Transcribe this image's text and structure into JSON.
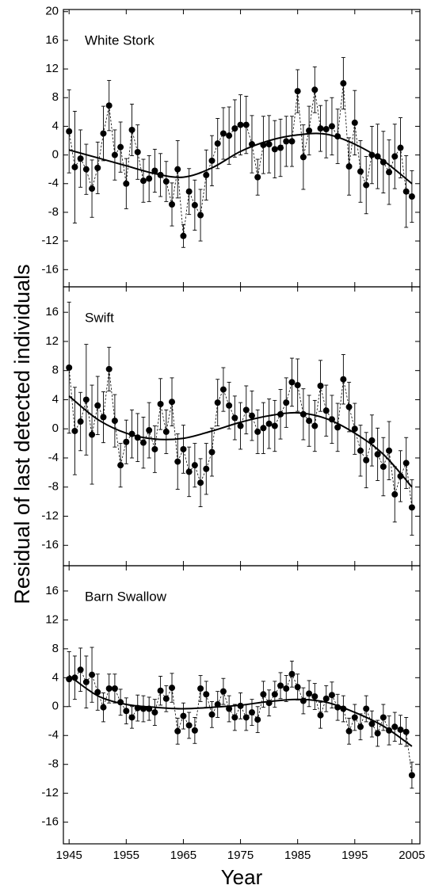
{
  "chart_data": [
    {
      "type": "line",
      "title": "White Stork",
      "x": [
        1945,
        1946,
        1947,
        1948,
        1949,
        1950,
        1951,
        1952,
        1953,
        1954,
        1955,
        1956,
        1957,
        1958,
        1959,
        1960,
        1961,
        1962,
        1963,
        1964,
        1965,
        1966,
        1967,
        1968,
        1969,
        1970,
        1971,
        1972,
        1973,
        1974,
        1975,
        1976,
        1977,
        1978,
        1979,
        1980,
        1981,
        1982,
        1983,
        1984,
        1985,
        1986,
        1987,
        1988,
        1989,
        1990,
        1991,
        1992,
        1993,
        1994,
        1995,
        1996,
        1997,
        1998,
        1999,
        2000,
        2001,
        2002,
        2003,
        2004,
        2005
      ],
      "values": [
        3.3,
        -1.7,
        -0.5,
        -2,
        -4.7,
        -1.8,
        3,
        6.9,
        0,
        1.1,
        -4,
        3.5,
        0.4,
        -3.6,
        -3.3,
        -2.2,
        -2.8,
        -3.7,
        -6.9,
        -2,
        -11.3,
        -5.1,
        -7,
        -8.4,
        -2.8,
        -0.8,
        1.6,
        3,
        2.7,
        3.7,
        4.2,
        4.2,
        1.5,
        -3.1,
        1.4,
        1.5,
        0.8,
        1,
        1.9,
        1.9,
        8.9,
        -0.3,
        3.4,
        9.1,
        3.7,
        3.6,
        4,
        2.6,
        10,
        -1.6,
        4.5,
        -2.3,
        -4.2,
        0,
        -0.2,
        -1,
        -2.4,
        -0.2,
        1,
        -5.1,
        -5.8
      ],
      "errors": [
        5.8,
        7.8,
        4,
        3.5,
        4,
        3.6,
        3.8,
        3.5,
        3.5,
        3.5,
        3.5,
        3.6,
        3.8,
        3,
        3.2,
        3,
        3,
        2.8,
        3,
        4,
        1.6,
        3.2,
        3.5,
        3.6,
        3.5,
        3.5,
        3.5,
        3.6,
        4,
        4,
        4.2,
        4,
        4,
        2.5,
        4,
        4,
        4,
        4,
        3.5,
        3.5,
        3,
        4.5,
        3.4,
        3.2,
        3.2,
        4,
        4,
        3.8,
        3.6,
        4,
        4.5,
        4.3,
        4,
        4,
        4.5,
        4.3,
        4.5,
        4.5,
        4.2,
        5,
        3.6
      ],
      "trend": {
        "x": [
          1945,
          1950,
          1955,
          1960,
          1965,
          1970,
          1975,
          1980,
          1985,
          1990,
          1995,
          2000,
          2005
        ],
        "values": [
          0.7,
          -0.4,
          -1.5,
          -2.6,
          -3.1,
          -1.8,
          0.5,
          2,
          2.8,
          2.9,
          1.5,
          -0.8,
          -4
        ]
      },
      "xlim": [
        1944,
        2006.4
      ],
      "xticks": [
        1945,
        1955,
        1965,
        1975,
        1985,
        1995,
        2005
      ],
      "ylim": [
        -18.4,
        20.3
      ],
      "yticks": [
        20,
        16,
        12,
        8,
        4,
        0,
        -4,
        -8,
        -12,
        -16
      ]
    },
    {
      "type": "line",
      "title": "Swift",
      "ylabel": "Residual of last detected individuals",
      "x": [
        1945,
        1946,
        1947,
        1948,
        1949,
        1950,
        1951,
        1952,
        1953,
        1954,
        1955,
        1956,
        1957,
        1958,
        1959,
        1960,
        1961,
        1962,
        1963,
        1964,
        1965,
        1966,
        1967,
        1968,
        1969,
        1970,
        1971,
        1972,
        1973,
        1974,
        1975,
        1976,
        1977,
        1978,
        1979,
        1980,
        1981,
        1982,
        1983,
        1984,
        1985,
        1986,
        1987,
        1988,
        1989,
        1990,
        1991,
        1992,
        1993,
        1994,
        1995,
        1996,
        1997,
        1998,
        1999,
        2000,
        2001,
        2002,
        2003,
        2004,
        2005
      ],
      "values": [
        8.4,
        -0.3,
        1,
        4,
        -0.8,
        3.2,
        1.6,
        8.2,
        1.1,
        -5,
        -1.8,
        -0.7,
        -1.2,
        -1.9,
        -0.2,
        -2.8,
        3.4,
        -0.4,
        3.7,
        -4.5,
        -2.8,
        -5.9,
        -5,
        -7.4,
        -5.5,
        -3.2,
        3.6,
        5.4,
        3.2,
        1.5,
        0.4,
        2.6,
        1.8,
        -0.4,
        0.1,
        0.7,
        0.4,
        2,
        3.6,
        6.4,
        6,
        2,
        1.1,
        0.4,
        5.9,
        2.5,
        1.3,
        0.2,
        6.8,
        3,
        0,
        -3,
        -4.3,
        -1.6,
        -3.5,
        -5.2,
        -3,
        -9,
        -6.5,
        -4.7,
        -10.8
      ],
      "errors": [
        9,
        6,
        4,
        7.6,
        6.8,
        4,
        3.5,
        3,
        3.6,
        3,
        3,
        3.3,
        3.3,
        3.5,
        3.8,
        3.2,
        3.5,
        3,
        3.3,
        3.8,
        3.3,
        3.4,
        3,
        3.3,
        3.5,
        3.3,
        3.2,
        3,
        3.2,
        3,
        3.2,
        3.3,
        3.4,
        3,
        3.5,
        3.4,
        3.5,
        3.4,
        3.4,
        3.3,
        3.6,
        3.5,
        3.5,
        3.5,
        3.5,
        3.5,
        3.3,
        3.3,
        3.4,
        3.4,
        3.5,
        3.5,
        3.8,
        3.5,
        3.6,
        4,
        4,
        3.8,
        3.5,
        3.5,
        3.8
      ],
      "trend": {
        "x": [
          1945,
          1950,
          1955,
          1960,
          1965,
          1970,
          1975,
          1980,
          1985,
          1990,
          1995,
          2000,
          2005
        ],
        "values": [
          4.5,
          1.3,
          -0.6,
          -1.4,
          -1.3,
          -0.3,
          0.9,
          1.8,
          2.2,
          1.4,
          -0.6,
          -3.5,
          -8
        ]
      },
      "xlim": [
        1944,
        2006.4
      ],
      "xticks": [
        1945,
        1955,
        1965,
        1975,
        1985,
        1995,
        2005
      ],
      "ylim": [
        -18.8,
        19.5
      ],
      "yticks": [
        16,
        12,
        8,
        4,
        0,
        -4,
        -8,
        -12,
        -16
      ]
    },
    {
      "type": "line",
      "title": "Barn Swallow",
      "xlabel": "Year",
      "x": [
        1945,
        1946,
        1947,
        1948,
        1949,
        1950,
        1951,
        1952,
        1953,
        1954,
        1955,
        1956,
        1957,
        1958,
        1959,
        1960,
        1961,
        1962,
        1963,
        1964,
        1965,
        1966,
        1967,
        1968,
        1969,
        1970,
        1971,
        1972,
        1973,
        1974,
        1975,
        1976,
        1977,
        1978,
        1979,
        1980,
        1981,
        1982,
        1983,
        1984,
        1985,
        1986,
        1987,
        1988,
        1989,
        1990,
        1991,
        1992,
        1993,
        1994,
        1995,
        1996,
        1997,
        1998,
        1999,
        2000,
        2001,
        2002,
        2003,
        2004,
        2005
      ],
      "values": [
        3.8,
        4,
        5.1,
        3.4,
        4.4,
        2,
        -0.1,
        2.5,
        2.5,
        0.6,
        -0.6,
        -1.5,
        -0.2,
        -0.3,
        -0.3,
        -0.8,
        2.2,
        1.1,
        2.6,
        -3.4,
        -1.3,
        -2.6,
        -3.3,
        2.5,
        1.7,
        -1.1,
        0.3,
        2.1,
        -0.3,
        -1.5,
        0.1,
        -1.5,
        -0.8,
        -1.8,
        1.7,
        0.5,
        1.7,
        2.9,
        2.5,
        4.5,
        2.7,
        0.8,
        1.8,
        1.4,
        -1.2,
        1.1,
        1.6,
        -0.1,
        -0.3,
        -3.4,
        -1.5,
        -2.8,
        -0.3,
        -2.4,
        -3.7,
        -1.5,
        -3.3,
        -2.8,
        -3.2,
        -3.5,
        -9.5
      ],
      "errors": [
        3.8,
        3,
        3,
        3.6,
        3.8,
        2.5,
        2,
        2,
        2,
        1.8,
        1.8,
        1.5,
        1.8,
        1.8,
        1.6,
        1.8,
        2,
        1.8,
        2,
        1.8,
        1.8,
        1.8,
        1.8,
        1.8,
        1.8,
        1.8,
        1.8,
        1.8,
        1.8,
        1.8,
        1.8,
        1.8,
        1.8,
        1.8,
        1.8,
        1.8,
        1.8,
        1.8,
        1.8,
        1.8,
        1.8,
        1.8,
        1.8,
        1.8,
        1.8,
        1.8,
        1.8,
        1.8,
        1.8,
        1.8,
        1.8,
        1.8,
        1.8,
        1.8,
        1.8,
        1.8,
        2,
        2,
        2,
        2,
        1.8
      ],
      "trend": {
        "x": [
          1945,
          1950,
          1955,
          1960,
          1965,
          1970,
          1975,
          1980,
          1985,
          1990,
          1995,
          2000,
          2005
        ],
        "values": [
          4.3,
          1.5,
          0.3,
          -0.1,
          -0.3,
          -0.1,
          0.2,
          0.7,
          1,
          0.6,
          -0.8,
          -2.7,
          -5.5
        ]
      },
      "xlim": [
        1944,
        2006.4
      ],
      "xticks": [
        1945,
        1955,
        1965,
        1975,
        1985,
        1995,
        2005
      ],
      "ylim": [
        -19,
        19.5
      ],
      "yticks": [
        16,
        12,
        8,
        4,
        0,
        -4,
        -8,
        -12,
        -16
      ]
    }
  ]
}
